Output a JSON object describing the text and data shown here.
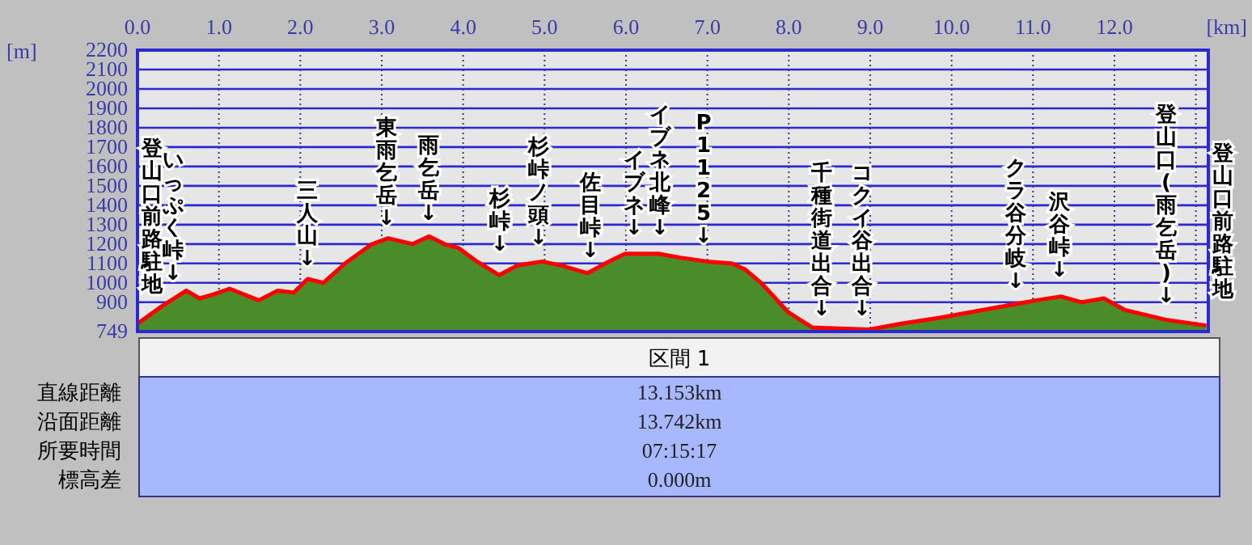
{
  "chart_data": [
    {
      "type": "area",
      "xlabel": "[km]",
      "ylabel": "[m]",
      "x": [
        0,
        0.3,
        0.6,
        0.76,
        0.93,
        1.13,
        1.49,
        1.72,
        1.92,
        2.09,
        2.28,
        2.55,
        2.88,
        3.08,
        3.38,
        3.58,
        3.77,
        3.94,
        4.17,
        4.44,
        4.67,
        4.97,
        5.2,
        5.53,
        5.79,
        5.99,
        6.4,
        6.67,
        7.0,
        7.3,
        7.46,
        7.66,
        7.99,
        8.29,
        8.99,
        9.38,
        9.85,
        10.51,
        11.04,
        11.34,
        11.6,
        11.87,
        12.13,
        12.63,
        13.13
      ],
      "series": [
        {
          "type": "area",
          "color": "#4a8c2a",
          "values": [
            790,
            880,
            960,
            920,
            940,
            970,
            910,
            960,
            950,
            1020,
            1000,
            1100,
            1200,
            1230,
            1200,
            1240,
            1200,
            1180,
            1110,
            1040,
            1090,
            1110,
            1090,
            1050,
            1110,
            1150,
            1150,
            1130,
            1110,
            1100,
            1070,
            1000,
            850,
            770,
            760,
            790,
            820,
            870,
            910,
            930,
            900,
            920,
            860,
            810,
            780
          ]
        },
        {
          "type": "line",
          "color": "#ff0000",
          "values": [
            790,
            880,
            960,
            920,
            940,
            970,
            910,
            960,
            950,
            1020,
            1000,
            1100,
            1200,
            1230,
            1200,
            1240,
            1200,
            1180,
            1110,
            1040,
            1090,
            1110,
            1090,
            1050,
            1110,
            1150,
            1150,
            1130,
            1110,
            1100,
            1070,
            1000,
            850,
            770,
            760,
            790,
            820,
            870,
            910,
            930,
            900,
            920,
            860,
            810,
            780
          ]
        }
      ],
      "xlim": [
        0,
        13.153
      ],
      "xticks": [
        {
          "value": 0,
          "label": "0.0"
        },
        {
          "value": 1,
          "label": "1.0"
        },
        {
          "value": 2,
          "label": "2.0"
        },
        {
          "value": 3,
          "label": "3.0"
        },
        {
          "value": 4,
          "label": "4.0"
        },
        {
          "value": 5,
          "label": "5.0"
        },
        {
          "value": 6,
          "label": "6.0"
        },
        {
          "value": 7,
          "label": "7.0"
        },
        {
          "value": 8,
          "label": "8.0"
        },
        {
          "value": 9,
          "label": "9.0"
        },
        {
          "value": 10,
          "label": "10.0"
        },
        {
          "value": 11,
          "label": "11.0"
        },
        {
          "value": 12,
          "label": "12.0"
        },
        {
          "value": 13,
          "label": null
        }
      ],
      "ylim": [
        749,
        2200
      ],
      "yticks": [
        749,
        900,
        1000,
        1100,
        1200,
        1300,
        1400,
        1500,
        1600,
        1700,
        1800,
        1900,
        2000,
        2100,
        2200
      ],
      "grid": true,
      "annotations": [
        "登山口前路駐地",
        "いっぷく峠↓",
        "三人山↓",
        "東雨乞岳↓",
        "雨乞岳↓",
        "杉峠↓",
        "杉峠ノ頭↓",
        "佐目峠↓",
        "イブネ↓",
        "イブネ北峰↓",
        "P1125↓",
        "千種街道出合↓",
        "コクイ谷出合↓",
        "クラ谷分岐↓",
        "沢谷峠↓",
        "登山口(雨乞岳)↓",
        "登山口前路駐地"
      ]
    },
    {
      "type": "other",
      "title": "区間 1",
      "categories": [
        "直線距離",
        "沿面距離",
        "所要時間",
        "標高差"
      ],
      "value_labels": [
        "13.153km",
        "13.742km",
        "07:15:17",
        "0.000m"
      ]
    }
  ]
}
